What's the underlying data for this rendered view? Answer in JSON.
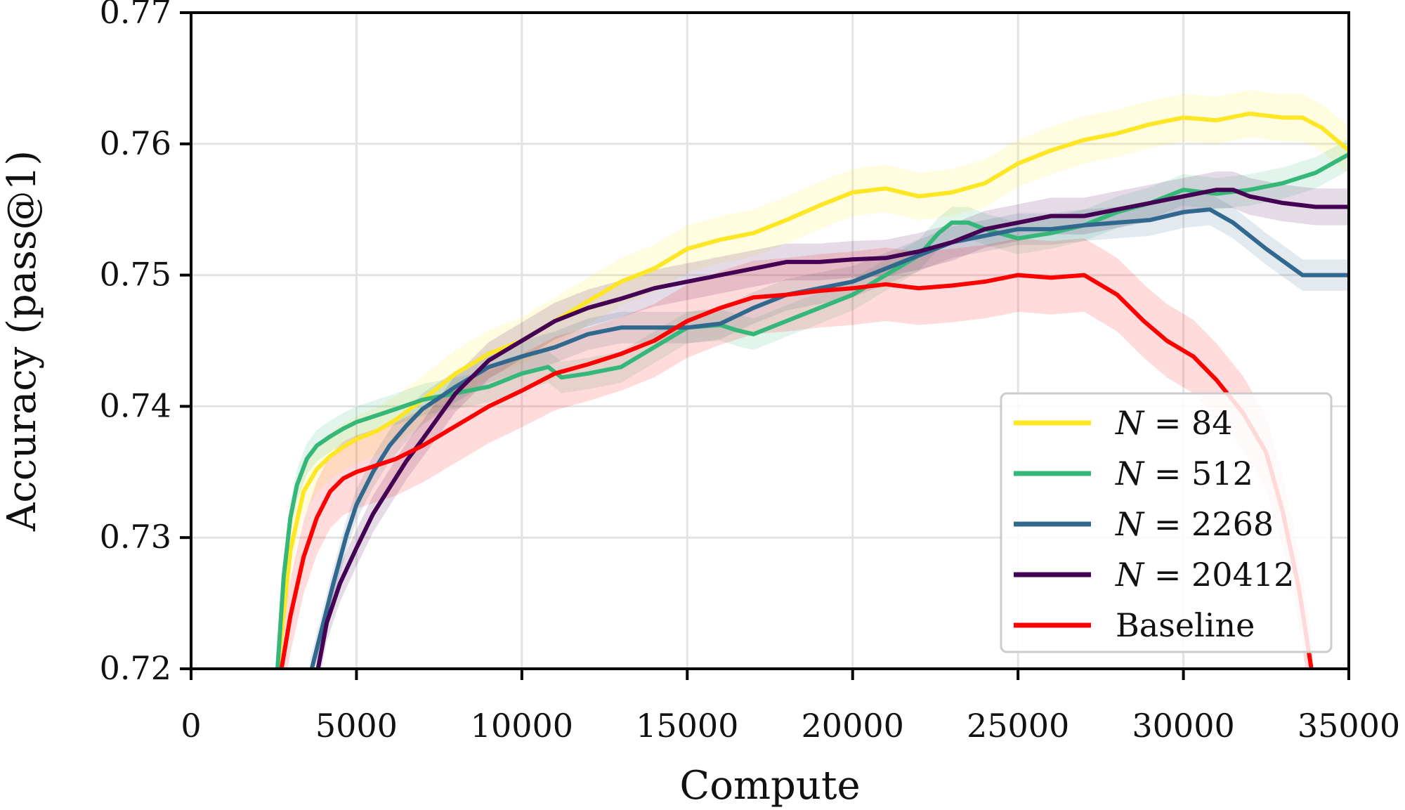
{
  "chart_data": {
    "type": "line",
    "title": "",
    "xlabel": "Compute",
    "ylabel": "Accuracy (pass@1)",
    "xlim": [
      0,
      35000
    ],
    "ylim": [
      0.72,
      0.77
    ],
    "xticks": [
      0,
      5000,
      10000,
      15000,
      20000,
      25000,
      30000,
      35000
    ],
    "xtick_labels": [
      "0",
      "5000",
      "10000",
      "15000",
      "20000",
      "25000",
      "30000",
      "35000"
    ],
    "yticks": [
      0.72,
      0.73,
      0.74,
      0.75,
      0.76,
      0.77
    ],
    "ytick_labels": [
      "0.72",
      "0.73",
      "0.74",
      "0.75",
      "0.76",
      "0.77"
    ],
    "grid": true,
    "legend_position": "lower-right",
    "series": [
      {
        "name": "N = 84",
        "legend_var": "N",
        "legend_eq": " = 84",
        "color": "#fde725",
        "band": 0.0018,
        "x": [
          2600,
          3000,
          3400,
          3800,
          4200,
          4600,
          5000,
          5600,
          6200,
          7000,
          8000,
          9000,
          10000,
          11000,
          12000,
          13000,
          14000,
          15000,
          16000,
          17000,
          18000,
          19000,
          20000,
          21000,
          22000,
          23000,
          24000,
          25000,
          26000,
          27000,
          28000,
          29000,
          30000,
          31000,
          32000,
          33000,
          33600,
          34200,
          35000
        ],
        "y": [
          0.7195,
          0.729,
          0.7335,
          0.7352,
          0.7362,
          0.7369,
          0.7375,
          0.7381,
          0.739,
          0.7405,
          0.7425,
          0.744,
          0.745,
          0.7465,
          0.748,
          0.7495,
          0.7505,
          0.752,
          0.7527,
          0.7532,
          0.7542,
          0.7553,
          0.7563,
          0.7566,
          0.756,
          0.7563,
          0.757,
          0.7585,
          0.7595,
          0.7603,
          0.7608,
          0.7615,
          0.762,
          0.7618,
          0.7623,
          0.762,
          0.762,
          0.7612,
          0.7595
        ]
      },
      {
        "name": "N = 512",
        "legend_var": "N",
        "legend_eq": " = 512",
        "color": "#35b779",
        "band": 0.0012,
        "x": [
          2600,
          2800,
          3000,
          3200,
          3500,
          3800,
          4200,
          4600,
          5000,
          5600,
          6200,
          7000,
          8000,
          9000,
          10000,
          10800,
          11200,
          12000,
          13000,
          14000,
          15000,
          16000,
          16500,
          17000,
          18000,
          19000,
          20000,
          21000,
          22000,
          22600,
          23000,
          23500,
          24000,
          25000,
          26000,
          27000,
          28000,
          29000,
          30000,
          31000,
          32000,
          33000,
          34000,
          35000
        ],
        "y": [
          0.7195,
          0.727,
          0.7315,
          0.734,
          0.736,
          0.737,
          0.7377,
          0.7383,
          0.7388,
          0.7393,
          0.7398,
          0.7405,
          0.741,
          0.7415,
          0.7425,
          0.743,
          0.7422,
          0.7425,
          0.743,
          0.7445,
          0.746,
          0.7462,
          0.7458,
          0.7455,
          0.7465,
          0.7475,
          0.7485,
          0.75,
          0.7515,
          0.7532,
          0.754,
          0.754,
          0.7535,
          0.7528,
          0.7532,
          0.7538,
          0.7548,
          0.7555,
          0.7565,
          0.7562,
          0.7565,
          0.757,
          0.7578,
          0.7592
        ]
      },
      {
        "name": "N = 2268",
        "legend_var": "N",
        "legend_eq": " = 2268",
        "color": "#31688e",
        "band": 0.0012,
        "x": [
          3600,
          3900,
          4300,
          4700,
          5000,
          5500,
          6000,
          6500,
          7000,
          8000,
          9000,
          10000,
          11000,
          12000,
          13000,
          14000,
          15000,
          16000,
          17000,
          18000,
          19000,
          20000,
          21000,
          22000,
          23000,
          24000,
          25000,
          26000,
          27000,
          28000,
          29000,
          30000,
          30800,
          31500,
          32500,
          33600,
          35000
        ],
        "y": [
          0.7195,
          0.7225,
          0.7265,
          0.7302,
          0.7325,
          0.735,
          0.737,
          0.7385,
          0.7398,
          0.7415,
          0.743,
          0.7438,
          0.7445,
          0.7455,
          0.746,
          0.746,
          0.746,
          0.7463,
          0.7475,
          0.7485,
          0.749,
          0.7495,
          0.7505,
          0.7515,
          0.7525,
          0.753,
          0.7535,
          0.7535,
          0.7538,
          0.754,
          0.7542,
          0.7548,
          0.755,
          0.754,
          0.752,
          0.75,
          0.75
        ]
      },
      {
        "name": "N = 20412",
        "legend_var": "N",
        "legend_eq": " = 20412",
        "color": "#440154",
        "band": 0.0014,
        "x": [
          3800,
          4100,
          4500,
          5000,
          5500,
          6000,
          6500,
          7000,
          8000,
          9000,
          10000,
          11000,
          12000,
          13000,
          14000,
          15000,
          16000,
          17000,
          18000,
          19000,
          20000,
          21000,
          22000,
          23000,
          24000,
          25000,
          26000,
          27000,
          28000,
          29000,
          30000,
          31000,
          31500,
          32000,
          33000,
          34000,
          35000
        ],
        "y": [
          0.7195,
          0.7235,
          0.7265,
          0.7292,
          0.7318,
          0.7338,
          0.7358,
          0.7375,
          0.741,
          0.7435,
          0.745,
          0.7465,
          0.7475,
          0.7482,
          0.749,
          0.7495,
          0.75,
          0.7505,
          0.751,
          0.751,
          0.7512,
          0.7513,
          0.7518,
          0.7525,
          0.7535,
          0.754,
          0.7545,
          0.7545,
          0.755,
          0.7555,
          0.756,
          0.7565,
          0.7565,
          0.756,
          0.7555,
          0.7552,
          0.7552
        ]
      },
      {
        "name": "Baseline",
        "legend_var": "",
        "legend_eq": "Baseline",
        "color": "#ff0000",
        "band": 0.0028,
        "x": [
          2700,
          3000,
          3400,
          3800,
          4200,
          4600,
          5000,
          5600,
          6200,
          7000,
          8000,
          9000,
          10000,
          11000,
          12000,
          13000,
          14000,
          15000,
          16000,
          17000,
          18000,
          19000,
          20000,
          21000,
          22000,
          23000,
          24000,
          25000,
          26000,
          27000,
          28000,
          28800,
          29500,
          30300,
          31000,
          31800,
          32500,
          33000,
          33500,
          33900
        ],
        "y": [
          0.7195,
          0.724,
          0.7285,
          0.7315,
          0.7335,
          0.7345,
          0.735,
          0.7355,
          0.736,
          0.737,
          0.7385,
          0.74,
          0.7412,
          0.7425,
          0.7432,
          0.744,
          0.745,
          0.7465,
          0.7475,
          0.7483,
          0.7485,
          0.7488,
          0.749,
          0.7493,
          0.749,
          0.7492,
          0.7495,
          0.75,
          0.7498,
          0.75,
          0.7485,
          0.7465,
          0.745,
          0.7438,
          0.742,
          0.7395,
          0.7365,
          0.732,
          0.726,
          0.7195
        ]
      }
    ]
  }
}
